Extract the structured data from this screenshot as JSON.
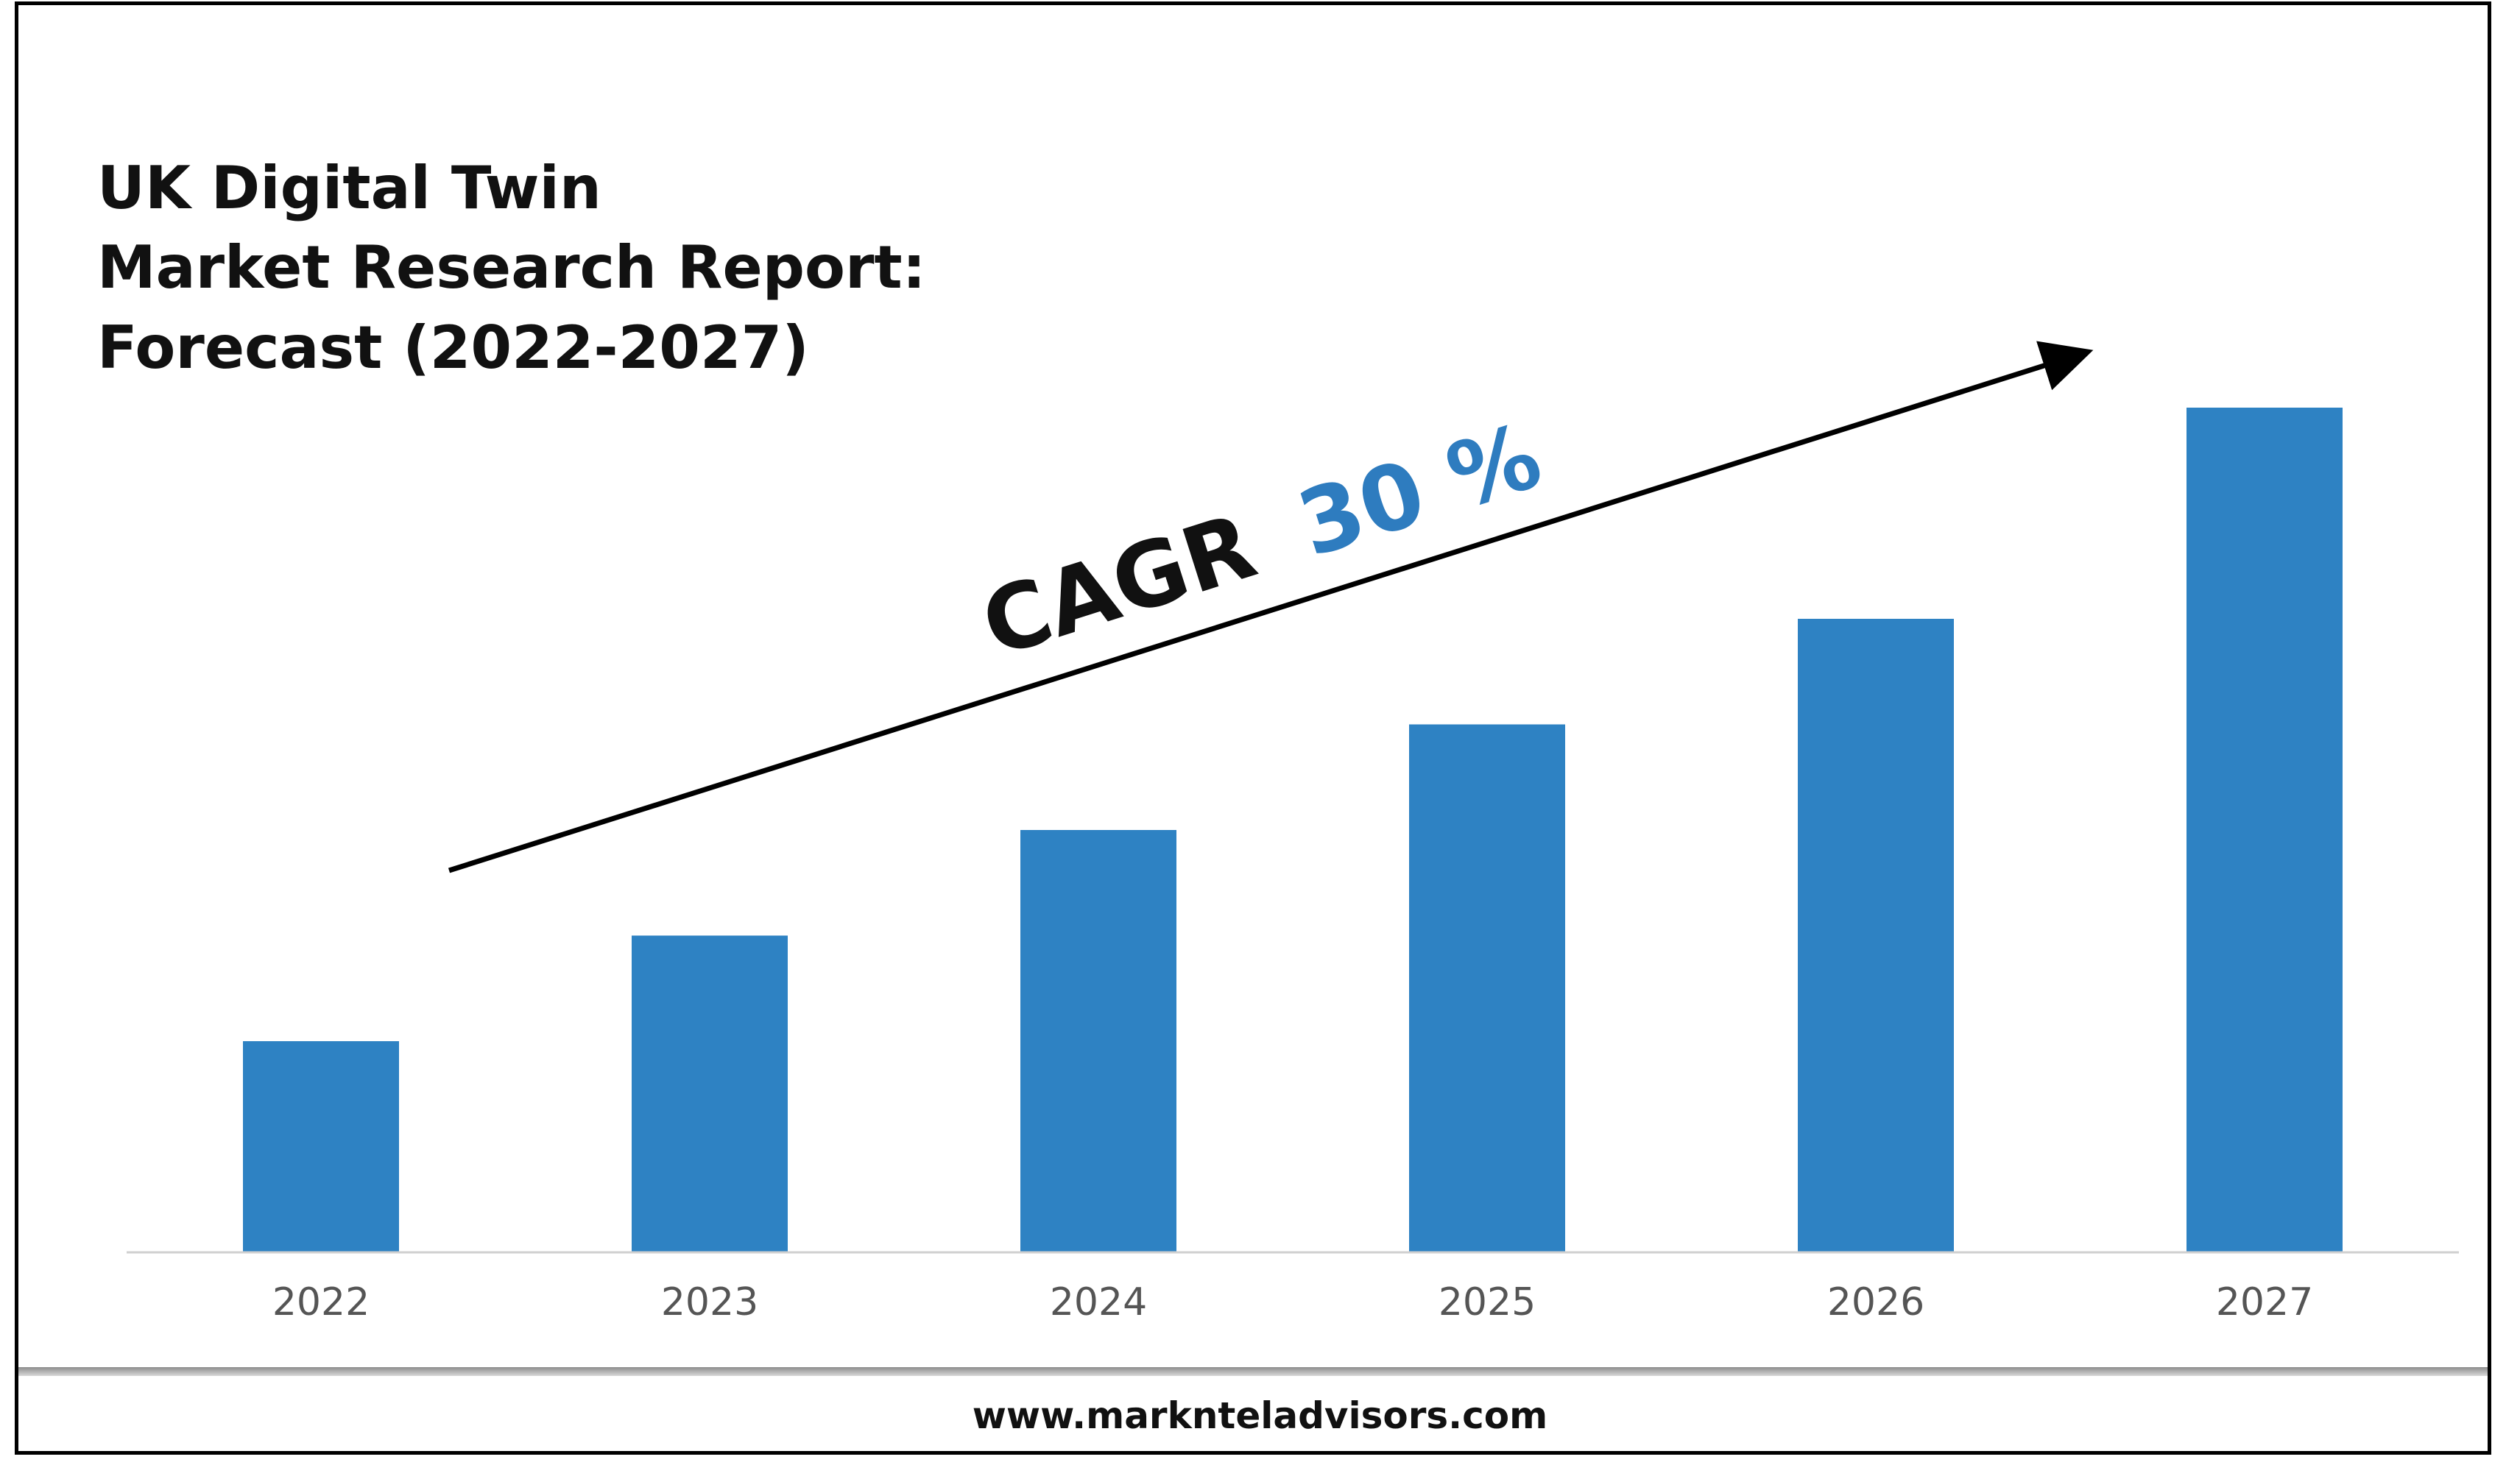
{
  "title_lines": [
    "UK Digital Twin",
    "Market Research Report:",
    "Forecast (2022-2027)"
  ],
  "annotation": {
    "prefix": "CAGR",
    "value": "30 %",
    "prefix_color": "#111111",
    "value_color": "#2e7cbf"
  },
  "footer": {
    "url": "www.marknteladvisors.com"
  },
  "colors": {
    "bar": "#2e82c3",
    "axis": "#d0d0d0",
    "arrow": "#000000"
  },
  "chart_data": {
    "type": "bar",
    "title": "UK Digital Twin Market Research Report: Forecast (2022-2027)",
    "categories": [
      "2022",
      "2023",
      "2024",
      "2025",
      "2026",
      "2027"
    ],
    "values": [
      1.0,
      1.5,
      2.0,
      2.5,
      3.0,
      4.0
    ],
    "ylim": [
      0,
      4.0
    ],
    "xlabel": "",
    "ylabel": "",
    "grid": false,
    "legend": "none"
  }
}
